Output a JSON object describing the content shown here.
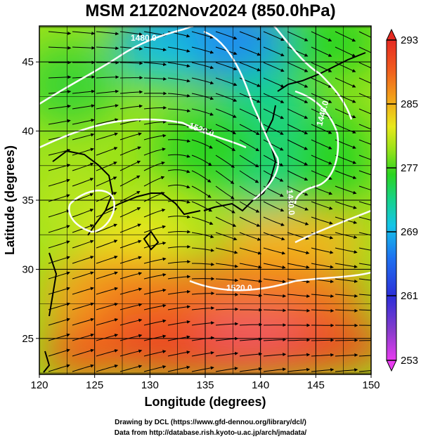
{
  "title": "MSM 21Z02Nov2024 (850.0hPa)",
  "map": {
    "x_axis": {
      "label": "Longitude (degrees)",
      "range": [
        120,
        150
      ],
      "ticks": [
        120,
        125,
        130,
        135,
        140,
        145,
        150
      ]
    },
    "y_axis": {
      "label": "Latitude  (degrees)",
      "range": [
        22.4,
        47.6
      ],
      "ticks": [
        25,
        30,
        35,
        40,
        45
      ]
    },
    "grid": true,
    "fields": [
      "temperature (shaded)",
      "geopotential height (white contours)",
      "streamlines (black)"
    ],
    "contour_labels": [
      "1480.0",
      "1520.0",
      "1440.0",
      "1480.0",
      "1520.0"
    ],
    "colorbar": {
      "ticks": [
        "293",
        "285",
        "277",
        "269",
        "261",
        "253"
      ],
      "min": 253,
      "max": 293,
      "colors": [
        "#e83cf0",
        "#8a3ccc",
        "#2d2fd8",
        "#1e72f0",
        "#15c4e8",
        "#16d28c",
        "#2ad420",
        "#9be21a",
        "#e8e81c",
        "#f2a01a",
        "#f05a1e",
        "#e52a22"
      ]
    }
  },
  "credits": {
    "line1": "Drawing by DCL (https://www.gfd-dennou.org/library/dcl/)",
    "line2": "Data from http://database.rish.kyoto-u.ac.jp/arch/jmadata/"
  }
}
